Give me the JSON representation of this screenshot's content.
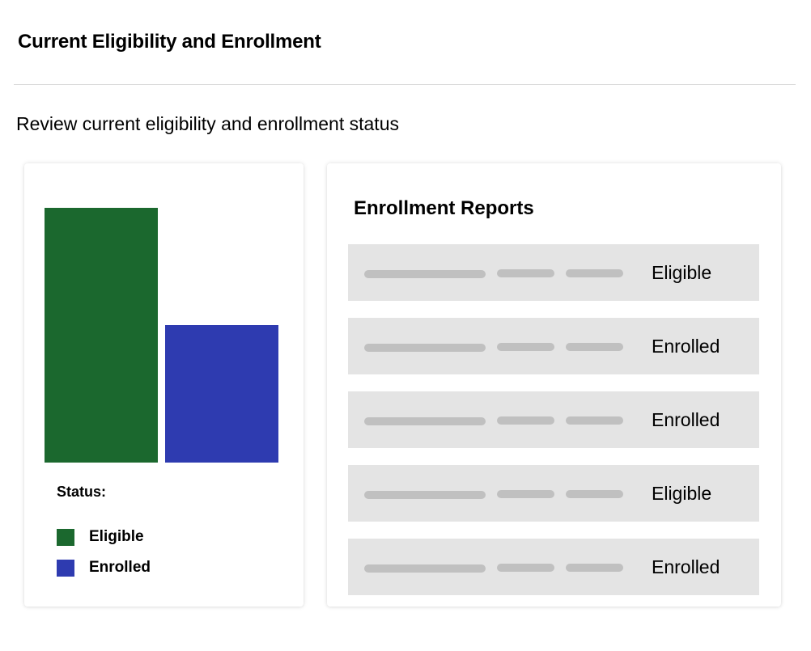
{
  "header": {
    "title": "Current Eligibility and Enrollment",
    "subtitle": "Review current eligibility and enrollment status"
  },
  "colors": {
    "eligible": "#1b682e",
    "enrolled": "#2e3bb0",
    "row_bg": "#e4e4e4",
    "placeholder": "#c0c0c0"
  },
  "chart_data": {
    "type": "bar",
    "title": "",
    "categories": [
      "Eligible",
      "Enrolled"
    ],
    "values": [
      315,
      170
    ],
    "relative_values": [
      1.0,
      0.54
    ],
    "colors": [
      "#1b682e",
      "#2e3bb0"
    ],
    "xlabel": "",
    "ylabel": "",
    "grid": false,
    "axes_visible": false,
    "legend": {
      "title": "Status:",
      "position": "bottom",
      "entries": [
        "Eligible",
        "Enrolled"
      ]
    }
  },
  "legend": {
    "title": "Status:",
    "items": [
      {
        "label": "Eligible",
        "color": "#1b682e"
      },
      {
        "label": "Enrolled",
        "color": "#2e3bb0"
      }
    ]
  },
  "reports": {
    "title": "Enrollment Reports",
    "rows": [
      {
        "status": "Eligible"
      },
      {
        "status": "Enrolled"
      },
      {
        "status": "Enrolled"
      },
      {
        "status": "Eligible"
      },
      {
        "status": "Enrolled"
      }
    ]
  }
}
